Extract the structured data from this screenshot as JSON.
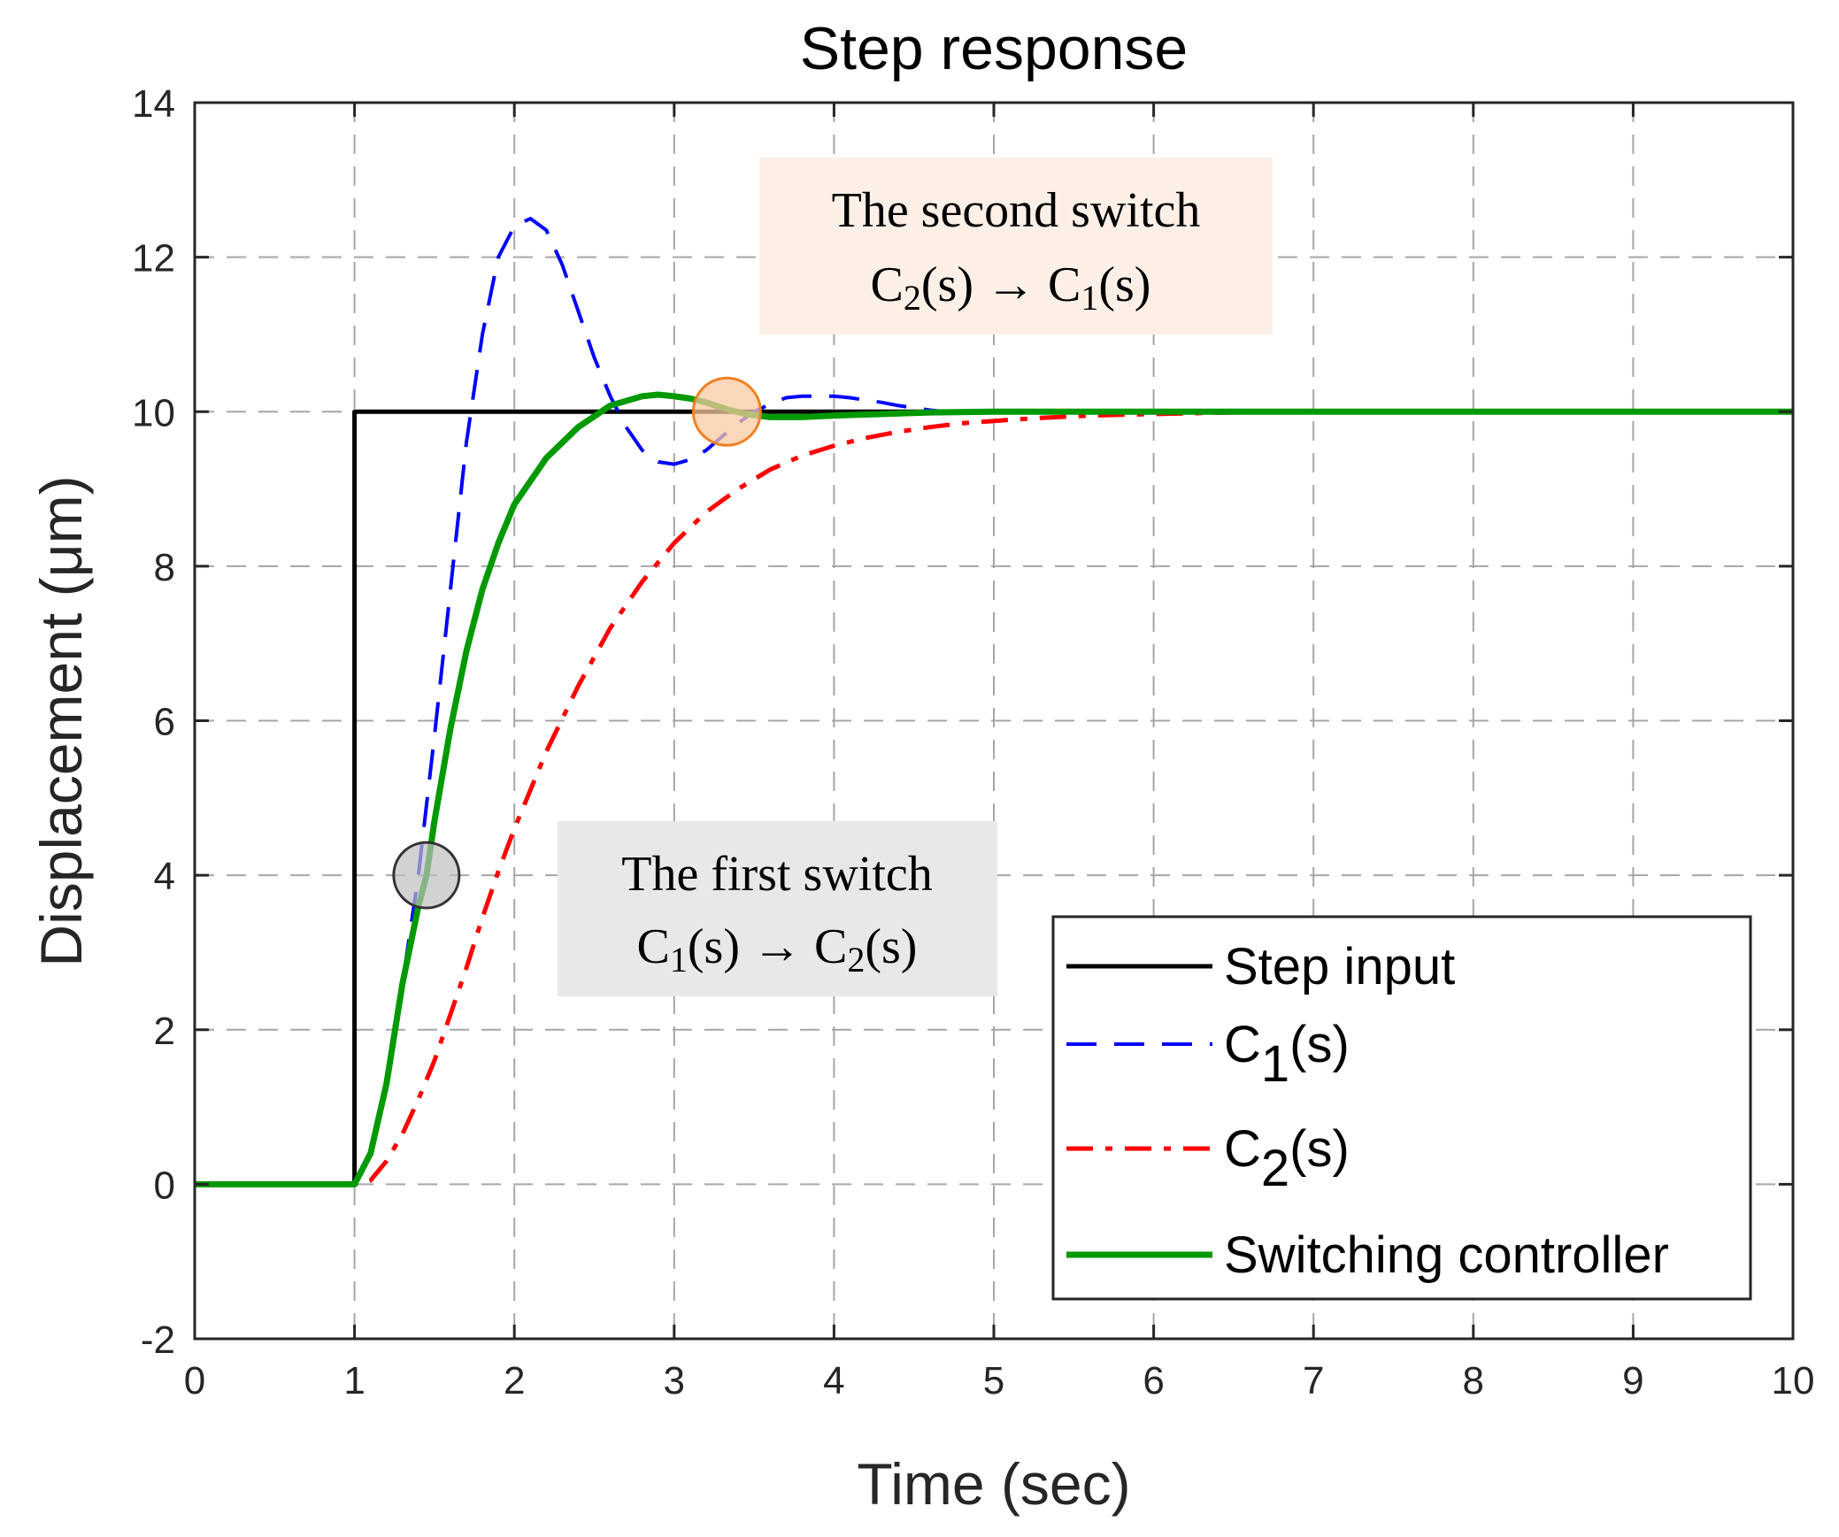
{
  "chart_data": {
    "type": "line",
    "title": "Step response",
    "xlabel": "Time (sec)",
    "ylabel": "Displacement (μm)",
    "xlim": [
      0,
      10
    ],
    "ylim": [
      -2,
      14
    ],
    "xticks": [
      "0",
      "1",
      "2",
      "3",
      "4",
      "5",
      "6",
      "7",
      "8",
      "9",
      "10"
    ],
    "yticks": [
      "-2",
      "0",
      "2",
      "4",
      "6",
      "8",
      "10",
      "12",
      "14"
    ],
    "grid": true,
    "legend_position": "bottom-right",
    "series": [
      {
        "name": "Step input",
        "legend_main": "Step input",
        "legend_sub": "",
        "legend_tail": "",
        "color": "#000000",
        "style": "solid",
        "x": [
          0,
          1,
          1,
          10
        ],
        "y": [
          0,
          0,
          10,
          10
        ]
      },
      {
        "name": "C1(s)",
        "legend_main": "C",
        "legend_sub": "1",
        "legend_tail": "(s)",
        "color": "#0000ff",
        "style": "dashed",
        "x": [
          0,
          1.0,
          1.1,
          1.2,
          1.3,
          1.4,
          1.5,
          1.6,
          1.7,
          1.8,
          1.9,
          2.0,
          2.1,
          2.2,
          2.3,
          2.4,
          2.5,
          2.6,
          2.7,
          2.8,
          2.9,
          3.0,
          3.1,
          3.2,
          3.3,
          3.4,
          3.5,
          3.6,
          3.7,
          3.8,
          3.9,
          4.0,
          4.1,
          4.2,
          4.3,
          4.4,
          4.5,
          4.6,
          4.8,
          5.0,
          5.5,
          6.0,
          10.0
        ],
        "y": [
          0,
          0,
          0.4,
          1.3,
          2.6,
          4.0,
          5.8,
          7.7,
          9.6,
          11.0,
          12.0,
          12.4,
          12.5,
          12.35,
          11.9,
          11.3,
          10.7,
          10.2,
          9.8,
          9.5,
          9.35,
          9.32,
          9.38,
          9.5,
          9.68,
          9.85,
          10.0,
          10.1,
          10.18,
          10.2,
          10.2,
          10.2,
          10.18,
          10.15,
          10.12,
          10.08,
          10.05,
          10.02,
          9.98,
          9.99,
          10.0,
          10.0,
          10.0
        ]
      },
      {
        "name": "C2(s)",
        "legend_main": "C",
        "legend_sub": "2",
        "legend_tail": "(s)",
        "color": "#ff0000",
        "style": "dashdot",
        "x": [
          0,
          1.0,
          1.1,
          1.2,
          1.3,
          1.4,
          1.5,
          1.6,
          1.7,
          1.8,
          1.9,
          2.0,
          2.2,
          2.4,
          2.6,
          2.8,
          3.0,
          3.2,
          3.4,
          3.6,
          3.8,
          4.0,
          4.2,
          4.4,
          4.6,
          4.8,
          5.0,
          5.3,
          5.6,
          6.0,
          6.5,
          7.0,
          8.0,
          10.0
        ],
        "y": [
          0,
          0,
          0.05,
          0.3,
          0.65,
          1.1,
          1.6,
          2.2,
          2.8,
          3.45,
          4.05,
          4.6,
          5.6,
          6.45,
          7.2,
          7.8,
          8.3,
          8.7,
          9.0,
          9.25,
          9.43,
          9.56,
          9.66,
          9.74,
          9.8,
          9.85,
          9.88,
          9.92,
          9.95,
          9.97,
          9.99,
          10.0,
          10.0,
          10.0
        ]
      },
      {
        "name": "Switching controller",
        "legend_main": "Switching controller",
        "legend_sub": "",
        "legend_tail": "",
        "color": "#009900",
        "style": "solid",
        "x": [
          0,
          1.0,
          1.1,
          1.2,
          1.3,
          1.4,
          1.45,
          1.5,
          1.6,
          1.7,
          1.8,
          1.9,
          2.0,
          2.2,
          2.4,
          2.6,
          2.8,
          2.9,
          3.0,
          3.1,
          3.2,
          3.33,
          3.45,
          3.6,
          3.8,
          4.0,
          4.3,
          4.6,
          5.0,
          6.0,
          10.0
        ],
        "y": [
          0,
          0,
          0.4,
          1.3,
          2.6,
          3.6,
          4.0,
          4.7,
          5.9,
          6.9,
          7.7,
          8.3,
          8.8,
          9.4,
          9.8,
          10.08,
          10.2,
          10.22,
          10.2,
          10.17,
          10.12,
          10.03,
          9.97,
          9.93,
          9.93,
          9.95,
          9.97,
          9.99,
          10.0,
          10.0,
          10.0
        ]
      }
    ],
    "annotations": [
      {
        "id": "first-switch",
        "line1": "The first switch",
        "line2_a": "C",
        "line2_a_sub": "1",
        "line2_b": "(s) → C",
        "line2_b_sub": "2",
        "line2_c": "(s)",
        "marker_x": 1.45,
        "marker_y": 4.0,
        "marker_color": "#bfbfbf",
        "box_color": "#e8e8e8"
      },
      {
        "id": "second-switch",
        "line1": "The second switch",
        "line2_a": "C",
        "line2_a_sub": "2",
        "line2_b": "(s) → C",
        "line2_b_sub": "1",
        "line2_c": "(s)",
        "marker_x": 3.33,
        "marker_y": 10.0,
        "marker_color": "#f8c9a0",
        "box_color": "#fcefe6"
      }
    ]
  }
}
